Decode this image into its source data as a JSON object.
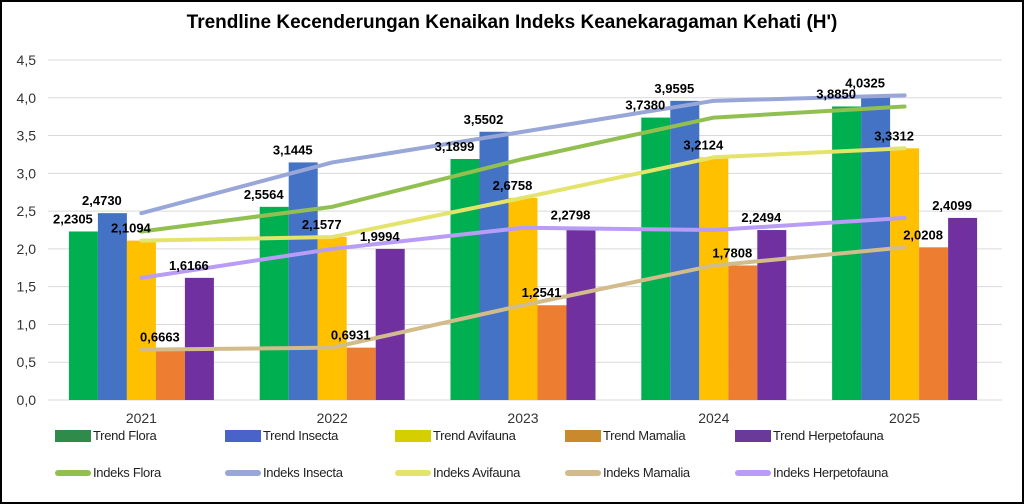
{
  "chart_data": {
    "type": "bar",
    "title": "Trendline Kecenderungan Kenaikan Indeks Keanekaragaman Kehati (H')",
    "categories": [
      "2021",
      "2022",
      "2023",
      "2024",
      "2025"
    ],
    "ylim": [
      0,
      4.5
    ],
    "yticks": [
      "0,0",
      "0,5",
      "1,0",
      "1,5",
      "2,0",
      "2,5",
      "3,0",
      "3,5",
      "4,0",
      "4,5"
    ],
    "grid": true,
    "legend_position": "bottom",
    "series": [
      {
        "name": "Trend Flora",
        "kind": "bar",
        "color": "#00b050",
        "values": [
          2.2305,
          2.5564,
          3.1899,
          3.738,
          3.885
        ],
        "labels": [
          "2,2305",
          "2,5564",
          "3,1899",
          "3,7380",
          "3,8850"
        ]
      },
      {
        "name": "Trend Insecta",
        "kind": "bar",
        "color": "#4472c4",
        "values": [
          2.473,
          3.1445,
          3.5502,
          3.9595,
          4.0325
        ],
        "labels": [
          "2,4730",
          "3,1445",
          "3,5502",
          "3,9595",
          "4,0325"
        ]
      },
      {
        "name": "Trend Avifauna",
        "kind": "bar",
        "color": "#ffc000",
        "values": [
          2.1094,
          2.1577,
          2.6758,
          3.2124,
          3.3312
        ],
        "labels": [
          "2,1094",
          "2,1577",
          "2,6758",
          "3,2124",
          "3,3312"
        ]
      },
      {
        "name": "Trend Mamalia",
        "kind": "bar",
        "color": "#ed7d31",
        "values": [
          0.6663,
          0.6931,
          1.2541,
          1.7808,
          2.0208
        ],
        "labels": [
          "0,6663",
          "0,6931",
          "1,2541",
          "1,7808",
          "2,0208"
        ]
      },
      {
        "name": "Trend Herpetofauna",
        "kind": "bar",
        "color": "#7030a0",
        "values": [
          1.6166,
          1.9994,
          2.2798,
          2.2494,
          2.4099
        ],
        "labels": [
          "1,6166",
          "1,9994",
          "2,2798",
          "2,2494",
          "2,4099"
        ]
      },
      {
        "name": "Indeks Flora",
        "kind": "line",
        "color": "#92c050",
        "values": [
          2.2305,
          2.5564,
          3.1899,
          3.738,
          3.885
        ]
      },
      {
        "name": "Indeks Insecta",
        "kind": "line",
        "color": "#98a6d8",
        "values": [
          2.473,
          3.1445,
          3.5502,
          3.9595,
          4.0325
        ]
      },
      {
        "name": "Indeks Avifauna",
        "kind": "line",
        "color": "#e4e46c",
        "values": [
          2.1094,
          2.1577,
          2.6758,
          3.2124,
          3.3312
        ]
      },
      {
        "name": "Indeks Mamalia",
        "kind": "line",
        "color": "#d2bc8c",
        "values": [
          0.6663,
          0.6931,
          1.2541,
          1.7808,
          2.0208
        ]
      },
      {
        "name": "Indeks Herpetofauna",
        "kind": "line",
        "color": "#b99cf5",
        "values": [
          1.6166,
          1.9994,
          2.2798,
          2.2494,
          2.4099
        ]
      }
    ],
    "legend_swatch_colors": [
      "#2e8b4a",
      "#4a63c8",
      "#d6cf00",
      "#c98a2e",
      "#6a3a9a",
      "#92c050",
      "#98a6d8",
      "#e4e46c",
      "#d2bc8c",
      "#b99cf5"
    ]
  }
}
